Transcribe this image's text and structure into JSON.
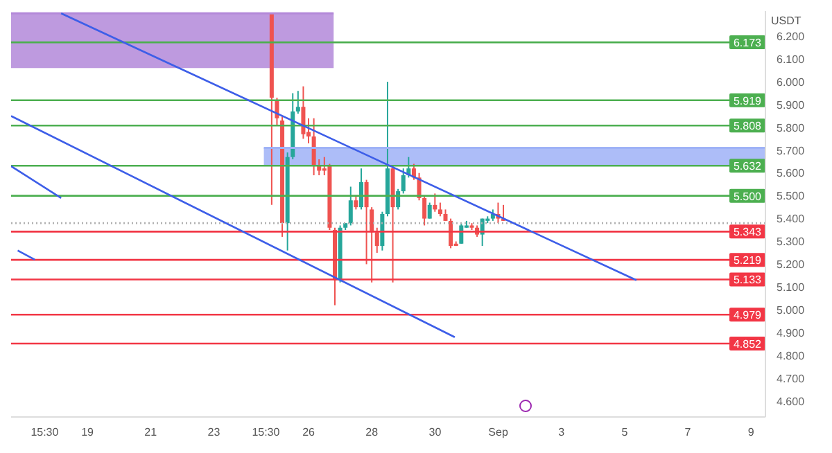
{
  "chart_data": {
    "type": "candlestick",
    "ylabel": "USDT",
    "x": [
      "--08-24T20:00",
      "--08-25T00:00",
      "--08-25T04:00",
      "--08-25T08:00",
      "--08-25T12:00",
      "--08-25T16:00",
      "--08-25T20:00",
      "--08-26T00:00",
      "--08-26T04:00",
      "--08-26T08:00",
      "--08-26T12:00",
      "--08-26T16:00",
      "--08-26T20:00",
      "--08-27T00:00",
      "--08-27T04:00",
      "--08-27T08:00",
      "--08-27T12:00",
      "--08-27T16:00",
      "--08-27T20:00",
      "--08-28T00:00",
      "--08-28T04:00",
      "--08-28T08:00",
      "--08-28T12:00",
      "--08-28T16:00",
      "--08-28T20:00",
      "--08-29T00:00",
      "--08-29T04:00",
      "--08-29T08:00",
      "--08-29T12:00",
      "--08-29T16:00",
      "--08-29T20:00",
      "--08-30T00:00",
      "--08-30T04:00",
      "--08-30T08:00",
      "--08-30T12:00",
      "--08-30T16:00",
      "--08-30T20:00",
      "--08-31T00:00",
      "--08-31T04:00",
      "--08-31T08:00",
      "--08-31T12:00",
      "--08-31T16:00",
      "--08-31T20:00",
      "--09-01T00:00",
      "--09-01T04:00"
    ],
    "ohlc": [
      [
        6.3,
        6.3,
        5.46,
        5.93
      ],
      [
        5.92,
        5.93,
        5.81,
        5.84
      ],
      [
        5.83,
        5.85,
        5.32,
        5.38
      ],
      [
        5.38,
        5.69,
        5.26,
        5.67
      ],
      [
        5.67,
        5.95,
        5.66,
        5.87
      ],
      [
        5.87,
        5.96,
        5.86,
        5.89
      ],
      [
        5.89,
        5.98,
        5.75,
        5.77
      ],
      [
        5.78,
        5.84,
        5.73,
        5.76
      ],
      [
        5.76,
        5.84,
        5.59,
        5.63
      ],
      [
        5.63,
        5.66,
        5.59,
        5.61
      ],
      [
        5.62,
        5.67,
        5.59,
        5.61
      ],
      [
        5.63,
        5.64,
        5.35,
        5.36
      ],
      [
        5.35,
        5.36,
        5.02,
        5.13
      ],
      [
        5.13,
        5.37,
        5.12,
        5.36
      ],
      [
        5.36,
        5.38,
        5.35,
        5.38
      ],
      [
        5.38,
        5.54,
        5.37,
        5.48
      ],
      [
        5.48,
        5.5,
        5.44,
        5.45
      ],
      [
        5.45,
        5.62,
        5.44,
        5.56
      ],
      [
        5.56,
        5.57,
        5.2,
        5.45
      ],
      [
        5.44,
        5.45,
        5.12,
        5.34
      ],
      [
        5.34,
        5.36,
        5.25,
        5.28
      ],
      [
        5.28,
        5.43,
        5.26,
        5.42
      ],
      [
        5.42,
        6.0,
        5.41,
        5.62
      ],
      [
        5.62,
        5.63,
        5.12,
        5.45
      ],
      [
        5.45,
        5.53,
        5.44,
        5.52
      ],
      [
        5.52,
        5.62,
        5.51,
        5.59
      ],
      [
        5.59,
        5.67,
        5.58,
        5.62
      ],
      [
        5.62,
        5.64,
        5.57,
        5.58
      ],
      [
        5.58,
        5.6,
        5.48,
        5.49
      ],
      [
        5.49,
        5.5,
        5.37,
        5.4
      ],
      [
        5.4,
        5.47,
        5.4,
        5.46
      ],
      [
        5.46,
        5.51,
        5.43,
        5.44
      ],
      [
        5.44,
        5.47,
        5.41,
        5.42
      ],
      [
        5.42,
        5.44,
        5.39,
        5.39
      ],
      [
        5.39,
        5.4,
        5.27,
        5.28
      ],
      [
        5.29,
        5.3,
        5.28,
        5.28
      ],
      [
        5.29,
        5.38,
        5.29,
        5.37
      ],
      [
        5.36,
        5.39,
        5.36,
        5.37
      ],
      [
        5.37,
        5.38,
        5.35,
        5.36
      ],
      [
        5.36,
        5.37,
        5.32,
        5.33
      ],
      [
        5.33,
        5.4,
        5.28,
        5.4
      ],
      [
        5.39,
        5.41,
        5.38,
        5.4
      ],
      [
        5.4,
        5.44,
        5.39,
        5.42
      ],
      [
        5.42,
        5.47,
        5.38,
        5.4
      ],
      [
        5.4,
        5.46,
        5.39,
        5.39
      ]
    ],
    "colors": [
      "#ef5350",
      "#ef5350",
      "#ef5350",
      "#26a69a",
      "#26a69a",
      "#26a69a",
      "#ef5350",
      "#ef5350",
      "#ef5350",
      "#ef5350",
      "#ef5350",
      "#ef5350",
      "#ef5350",
      "#26a69a",
      "#26a69a",
      "#26a69a",
      "#ef5350",
      "#26a69a",
      "#ef5350",
      "#ef5350",
      "#ef5350",
      "#26a69a",
      "#26a69a",
      "#ef5350",
      "#26a69a",
      "#26a69a",
      "#26a69a",
      "#ef5350",
      "#ef5350",
      "#ef5350",
      "#26a69a",
      "#ef5350",
      "#ef5350",
      "#ef5350",
      "#ef5350",
      "#ef5350",
      "#26a69a",
      "#26a69a",
      "#ef5350",
      "#ef5350",
      "#26a69a",
      "#26a69a",
      "#26a69a",
      "#ef5350",
      "#ef5350"
    ],
    "series": [
      {
        "type": "line",
        "color": "#b388d9",
        "x": [
          "--08-16T14:00",
          "--08-26T19:00"
        ],
        "values": [
          6.3,
          6.3
        ],
        "lower": [
          6.06,
          6.06
        ],
        "upper": [
          6.3,
          6.3
        ]
      },
      {
        "type": "line",
        "color": "#9fb2f7",
        "x": [
          "--08-24T14:00",
          "--09-09T11:00"
        ],
        "values": [
          5.71,
          5.71
        ],
        "lower": [
          5.63,
          5.63
        ],
        "upper": [
          5.71,
          5.71
        ]
      },
      {
        "type": "line",
        "color": "#3d5ee8",
        "x": [
          "--08-18T04:00",
          "--09-05T09:00"
        ],
        "values": [
          6.3,
          5.13
        ]
      },
      {
        "type": "line",
        "color": "#3d5ee8",
        "x": [
          "--08-16T14:00",
          "--08-30T15:00"
        ],
        "values": [
          5.85,
          4.88
        ]
      },
      {
        "type": "line",
        "color": "#3d5ee8",
        "x": [
          "--08-16T14:00",
          "--08-18T04:00"
        ],
        "values": [
          5.63,
          5.49
        ]
      },
      {
        "type": "line",
        "color": "#3d5ee8",
        "x": [
          "--08-16T19:00",
          "--08-17T08:00"
        ],
        "values": [
          5.26,
          5.22
        ]
      }
    ],
    "ref_lines": [
      {
        "axis": "y",
        "value": 6.173,
        "label": "6.173",
        "color": "#4caf50"
      },
      {
        "axis": "y",
        "value": 5.919,
        "label": "5.919",
        "color": "#4caf50"
      },
      {
        "axis": "y",
        "value": 5.808,
        "label": "5.808",
        "color": "#4caf50"
      },
      {
        "axis": "y",
        "value": 5.632,
        "label": "5.632",
        "color": "#4caf50"
      },
      {
        "axis": "y",
        "value": 5.5,
        "label": "5.500",
        "color": "#4caf50"
      },
      {
        "axis": "y",
        "value": 5.38,
        "color": "#b0b0b0",
        "line_style": "dotted"
      },
      {
        "axis": "y",
        "value": 5.343,
        "label": "5.343",
        "color": "#f23645"
      },
      {
        "axis": "y",
        "value": 5.219,
        "label": "5.219",
        "color": "#f23645"
      },
      {
        "axis": "y",
        "value": 5.133,
        "label": "5.133",
        "color": "#f23645"
      },
      {
        "axis": "y",
        "value": 4.979,
        "label": "4.979",
        "color": "#f23645"
      },
      {
        "axis": "y",
        "value": 4.852,
        "label": "4.852",
        "color": "#f23645"
      }
    ],
    "xlim": [
      "--08-16T14:00",
      "--09-09T11:00"
    ],
    "xticks": [
      {
        "value": "--08-17T15:30",
        "label": "15:30"
      },
      {
        "value": "--08-19",
        "label": "19"
      },
      {
        "value": "--08-21",
        "label": "21"
      },
      {
        "value": "--08-23",
        "label": "23"
      },
      {
        "value": "--08-24T15:30",
        "label": "15:30"
      },
      {
        "value": "--08-26",
        "label": "26"
      },
      {
        "value": "--08-28",
        "label": "28"
      },
      {
        "value": "--08-30",
        "label": "30"
      },
      {
        "value": "--09-01",
        "label": "Sep"
      },
      {
        "value": "--09-03",
        "label": "3"
      },
      {
        "value": "--09-05",
        "label": "5"
      },
      {
        "value": "--09-07",
        "label": "7"
      },
      {
        "value": "--09-09",
        "label": "9"
      }
    ],
    "ylim": [
      4.53,
      6.31
    ],
    "yticks": [
      {
        "value": 4.6,
        "label": "4.600"
      },
      {
        "value": 4.7,
        "label": "4.700"
      },
      {
        "value": 4.8,
        "label": "4.800"
      },
      {
        "value": 4.9,
        "label": "4.900"
      },
      {
        "value": 5.0,
        "label": "5.000"
      },
      {
        "value": 5.1,
        "label": "5.100"
      },
      {
        "value": 5.2,
        "label": "5.200"
      },
      {
        "value": 5.3,
        "label": "5.300"
      },
      {
        "value": 5.4,
        "label": "5.400"
      },
      {
        "value": 5.5,
        "label": "5.500"
      },
      {
        "value": 5.6,
        "label": "5.600"
      },
      {
        "value": 5.7,
        "label": "5.700"
      },
      {
        "value": 5.8,
        "label": "5.800"
      },
      {
        "value": 5.9,
        "label": "5.900"
      },
      {
        "value": 6.0,
        "label": "6.000"
      },
      {
        "value": 6.1,
        "label": "6.100"
      },
      {
        "value": 6.2,
        "label": "6.200"
      }
    ]
  }
}
